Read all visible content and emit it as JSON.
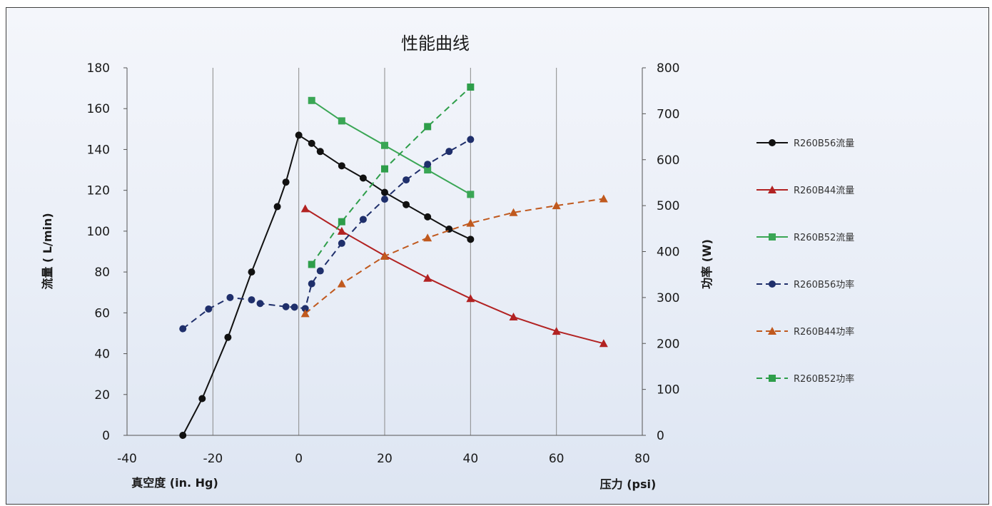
{
  "chart_data": {
    "type": "line",
    "title": "性能曲线",
    "xlabel_left": "真空度 (in. Hg)",
    "xlabel_right": "压力 (psi)",
    "ylabel_left": "流量 ( L/min)",
    "ylabel_right": "功率 (W)",
    "x_ticks": [
      "-40",
      "-20",
      "0",
      "20",
      "40",
      "60",
      "80"
    ],
    "y_left_ticks": [
      "0",
      "20",
      "40",
      "60",
      "80",
      "100",
      "120",
      "140",
      "160",
      "180"
    ],
    "y_right_ticks": [
      "0",
      "100",
      "200",
      "300",
      "400",
      "500",
      "600",
      "700",
      "800"
    ],
    "xlim": [
      -40,
      80
    ],
    "ylim_left": [
      0,
      180
    ],
    "ylim_right": [
      0,
      800
    ],
    "grid": "vertical",
    "legend_position": "right",
    "series": [
      {
        "name": "R260B56流量",
        "axis": "left",
        "color": "#111111",
        "marker": "circle",
        "dash": "solid",
        "points": [
          [
            -27,
            0
          ],
          [
            -22.5,
            18
          ],
          [
            -16.5,
            48
          ],
          [
            -11,
            80
          ],
          [
            -5,
            112
          ],
          [
            -3,
            124
          ],
          [
            0,
            147
          ],
          [
            3,
            143
          ],
          [
            5,
            139
          ],
          [
            10,
            132
          ],
          [
            15,
            126
          ],
          [
            20,
            119
          ],
          [
            25,
            113
          ],
          [
            30,
            107
          ],
          [
            35,
            101
          ],
          [
            40,
            96
          ]
        ]
      },
      {
        "name": "R260B44流量",
        "axis": "left",
        "color": "#b22222",
        "marker": "triangle",
        "dash": "solid",
        "points": [
          [
            1.5,
            111
          ],
          [
            10,
            100
          ],
          [
            20,
            88
          ],
          [
            30,
            77
          ],
          [
            40,
            67
          ],
          [
            50,
            58
          ],
          [
            60,
            51
          ],
          [
            71,
            45
          ]
        ]
      },
      {
        "name": "R260B52流量",
        "axis": "left",
        "color": "#3aa655",
        "marker": "square",
        "dash": "solid",
        "points": [
          [
            3,
            164
          ],
          [
            10,
            154
          ],
          [
            20,
            142
          ],
          [
            30,
            130
          ],
          [
            40,
            118
          ]
        ]
      },
      {
        "name": "R260B56功率",
        "axis": "right",
        "color": "#1f2f6b",
        "marker": "circle",
        "dash": "dashed",
        "points": [
          [
            -27,
            232
          ],
          [
            -21,
            275
          ],
          [
            -16,
            300
          ],
          [
            -11,
            295
          ],
          [
            -9,
            287
          ],
          [
            -3,
            280
          ],
          [
            -1,
            279
          ],
          [
            1.5,
            276
          ],
          [
            3,
            330
          ],
          [
            5,
            358
          ],
          [
            10,
            418
          ],
          [
            15,
            470
          ],
          [
            20,
            514
          ],
          [
            25,
            556
          ],
          [
            30,
            590
          ],
          [
            35,
            618
          ],
          [
            40,
            644
          ]
        ]
      },
      {
        "name": "R260B44功率",
        "axis": "right",
        "color": "#c0591e",
        "marker": "triangle",
        "dash": "dashed",
        "points": [
          [
            1.5,
            265
          ],
          [
            10,
            330
          ],
          [
            20,
            390
          ],
          [
            30,
            430
          ],
          [
            40,
            462
          ],
          [
            50,
            485
          ],
          [
            60,
            500
          ],
          [
            71,
            515
          ]
        ]
      },
      {
        "name": "R260B52功率",
        "axis": "right",
        "color": "#2e9e4a",
        "marker": "square",
        "dash": "dashed",
        "points": [
          [
            3,
            372
          ],
          [
            10,
            465
          ],
          [
            20,
            580
          ],
          [
            30,
            672
          ],
          [
            40,
            758
          ]
        ]
      }
    ],
    "legend": [
      "R260B56流量",
      "R260B44流量",
      "R260B52流量",
      "R260B56功率",
      "R260B44功率",
      "R260B52功率"
    ]
  }
}
